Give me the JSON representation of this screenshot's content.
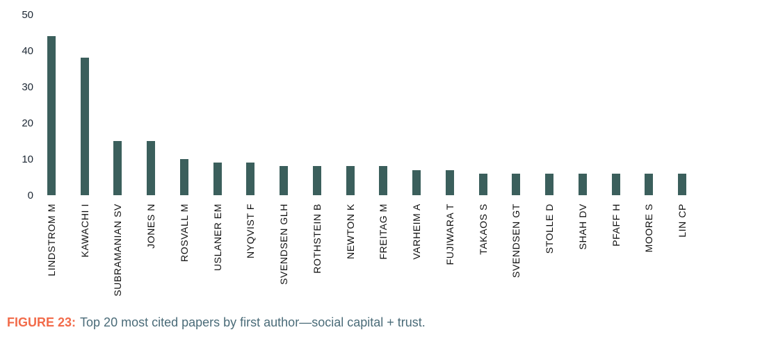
{
  "caption": {
    "label": "FIGURE 23:",
    "text": "Top 20 most cited papers by first author—social capital + trust."
  },
  "colors": {
    "bar": "#3B5F5C",
    "y_tick_label": "#1C2733",
    "x_tick_label": "#111111",
    "caption_accent": "#F26B4A",
    "caption_text": "#4A6B78"
  },
  "chart_data": {
    "type": "bar",
    "title": "",
    "xlabel": "",
    "ylabel": "",
    "categories": [
      "LINDSTROM M",
      "KAWACHI I",
      "SUBRAMANIAN SV",
      "JONES N",
      "ROSVALL M",
      "USLANER EM",
      "NYQVIST F",
      "SVENDSEN GLH",
      "ROTHSTEIN B",
      "NEWTON K",
      "FREITAG M",
      "VARHEIM A",
      "FUJIWARA T",
      "TAKAOS S",
      "SVENDSEN GT",
      "STOLLE D",
      "SHAH DV",
      "PFAFF H",
      "MOORE S",
      "LIN CP"
    ],
    "values": [
      44,
      38,
      15,
      15,
      10,
      9,
      9,
      8,
      8,
      8,
      8,
      7,
      7,
      6,
      6,
      6,
      6,
      6,
      6,
      6
    ],
    "yticks": [
      0,
      10,
      20,
      30,
      40,
      50
    ],
    "ylim": [
      0,
      50
    ],
    "grid": false,
    "legend": false,
    "x_tick_rotation": 90,
    "bar_color": "#3B5F5C",
    "caption": "FIGURE 23: Top 20 most cited papers by first author—social capital + trust."
  }
}
